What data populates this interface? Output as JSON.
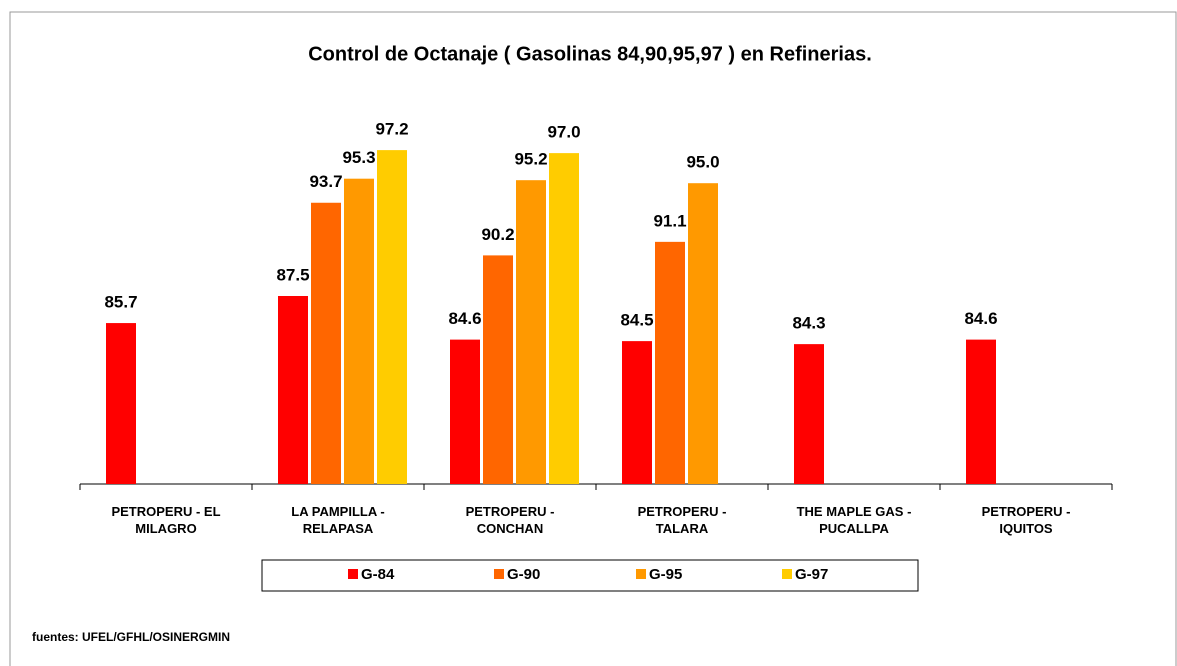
{
  "chart_data": {
    "type": "bar",
    "title": "Control de Octanaje ( Gasolinas 84,90,95,97 ) en Refinerias.",
    "categories": [
      "PETROPERU - EL\nMILAGRO",
      "LA PAMPILLA -\nRELAPASA",
      "PETROPERU -\nCONCHAN",
      "PETROPERU -\nTALARA",
      "THE MAPLE GAS -\nPUCALLPA",
      "PETROPERU -\nIQUITOS"
    ],
    "series": [
      {
        "name": "G-84",
        "color": "#ff0000",
        "values": [
          85.7,
          87.5,
          84.6,
          84.5,
          84.3,
          84.6
        ],
        "value_labels": [
          "85.7",
          "87.5",
          "84.6",
          "84.5",
          "84.3",
          "84.6"
        ]
      },
      {
        "name": "G-90",
        "color": "#ff6600",
        "values": [
          null,
          93.7,
          90.2,
          91.1,
          null,
          null
        ],
        "value_labels": [
          null,
          "93.7",
          "90.2",
          "91.1",
          null,
          null
        ]
      },
      {
        "name": "G-95",
        "color": "#ff9900",
        "values": [
          null,
          95.3,
          95.2,
          95.0,
          null,
          null
        ],
        "value_labels": [
          null,
          "95.3",
          "95.2",
          "95.0",
          null,
          null
        ]
      },
      {
        "name": "G-97",
        "color": "#ffcc00",
        "values": [
          null,
          97.2,
          97.0,
          null,
          null,
          null
        ],
        "value_labels": [
          null,
          "97.2",
          "97.0",
          null,
          null,
          null
        ]
      }
    ],
    "ylim": [
      75,
      100
    ],
    "legend": "bottom",
    "source": "fuentes: UFEL/GFHL/OSINERGMIN"
  }
}
